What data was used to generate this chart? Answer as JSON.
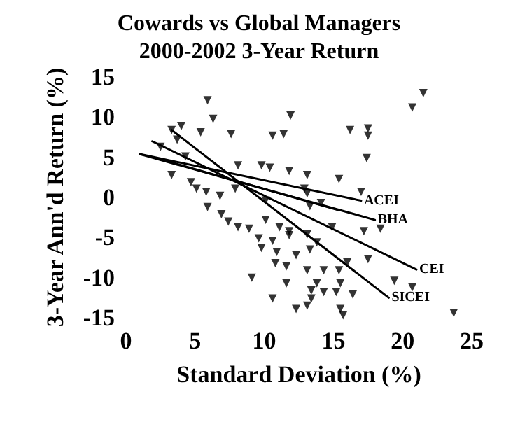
{
  "chart_data": {
    "type": "scatter",
    "title": "Cowards vs Global Managers\n2000-2002 3-Year Return",
    "xlabel": "Standard Deviation (%)",
    "ylabel": "3-Year Ann'd Return (%)",
    "xlim": [
      0,
      25
    ],
    "xticks": [
      0,
      5,
      10,
      15,
      20,
      25
    ],
    "ylim": [
      -15,
      15
    ],
    "yticks": [
      -15,
      -10,
      -5,
      0,
      5,
      10,
      15
    ],
    "grid": false,
    "series": [
      {
        "marker": "triangle",
        "color": "#000000",
        "x": [
          5.9,
          6.3,
          3.3,
          4.0,
          5.4,
          7.6,
          3.7,
          2.5,
          4.3,
          8.1,
          3.3,
          4.7,
          5.1,
          5.8,
          6.8,
          7.9,
          21.5,
          20.7,
          11.9,
          10.6,
          11.4,
          16.2,
          17.5,
          17.5,
          17.4,
          9.8,
          10.4,
          11.8,
          13.1,
          15.4,
          17.0,
          12.9,
          13.1,
          14.1,
          13.3,
          17.2,
          18.4,
          5.9,
          6.9,
          7.4,
          8.1,
          8.9,
          9.1,
          10.1,
          10.1,
          11.1,
          11.8,
          9.6,
          10.6,
          11.8,
          13.1,
          14.9,
          13.8,
          9.8,
          10.9,
          12.3,
          13.3,
          16.0,
          17.5,
          10.8,
          11.6,
          13.1,
          14.3,
          15.4,
          11.6,
          13.8,
          15.5,
          19.4,
          20.7,
          13.4,
          14.3,
          15.2,
          16.4,
          10.6,
          13.4,
          12.3,
          15.5,
          13.1,
          15.7,
          23.7
        ],
        "values": [
          12.1,
          9.8,
          8.4,
          8.9,
          8.1,
          7.9,
          7.2,
          6.3,
          5.1,
          4.0,
          2.8,
          1.9,
          1.1,
          0.7,
          0.2,
          1.1,
          13.0,
          11.2,
          10.2,
          7.7,
          7.9,
          8.4,
          8.6,
          7.7,
          4.9,
          4.0,
          3.7,
          3.3,
          2.8,
          2.3,
          0.7,
          1.1,
          0.5,
          -0.7,
          -1.1,
          -4.2,
          -3.9,
          -1.2,
          -2.1,
          -3.0,
          -3.7,
          -3.9,
          -10.0,
          -0.4,
          -2.8,
          -3.7,
          -4.2,
          -5.1,
          -5.4,
          -4.7,
          -4.6,
          -3.7,
          -5.6,
          -6.3,
          -6.8,
          -7.2,
          -6.5,
          -8.1,
          -7.7,
          -8.2,
          -8.6,
          -9.1,
          -9.1,
          -9.1,
          -10.7,
          -10.7,
          -10.7,
          -10.4,
          -11.2,
          -11.6,
          -11.8,
          -11.8,
          -12.1,
          -12.6,
          -12.6,
          -13.9,
          -13.9,
          -13.5,
          -14.7,
          -14.4
        ]
      },
      {
        "type": "line",
        "marker": "none",
        "name": "ACEI",
        "color": "#000000",
        "x": [
          1.0,
          17.0
        ],
        "values": [
          5.4,
          -0.4
        ]
      },
      {
        "type": "line",
        "marker": "none",
        "color": "#000000",
        "x": [
          2.0,
          15.4
        ],
        "values": [
          5.0,
          -1.6
        ]
      },
      {
        "type": "line",
        "marker": "none",
        "name": "BHA",
        "color": "#000000",
        "x": [
          1.0,
          18.0
        ],
        "values": [
          5.4,
          -2.8
        ]
      },
      {
        "type": "line",
        "marker": "none",
        "name": "CEI",
        "color": "#000000",
        "x": [
          1.9,
          21.0
        ],
        "values": [
          7.0,
          -9.0
        ]
      },
      {
        "type": "line",
        "marker": "none",
        "name": "SICEI",
        "color": "#000000",
        "x": [
          3.3,
          19.0
        ],
        "values": [
          8.4,
          -12.5
        ]
      }
    ]
  }
}
